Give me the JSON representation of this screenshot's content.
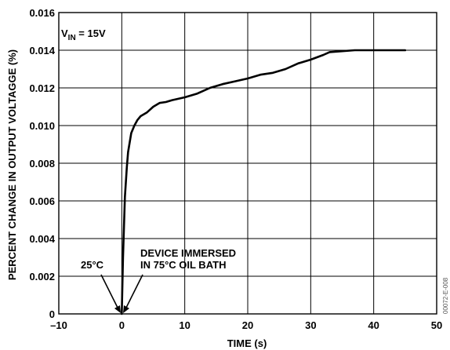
{
  "chart_data": {
    "type": "line",
    "title": "",
    "xlabel": "TIME (s)",
    "ylabel": "PERCENT CHANGE IN OUTPUT VOLTAGGE (%)",
    "xlim": [
      -10,
      50
    ],
    "ylim": [
      0,
      0.016
    ],
    "x_ticks": [
      -10,
      0,
      10,
      20,
      30,
      40,
      50
    ],
    "x_tick_labels": [
      "–10",
      "0",
      "10",
      "20",
      "30",
      "40",
      "50"
    ],
    "y_ticks": [
      0,
      0.002,
      0.004,
      0.006,
      0.008,
      0.01,
      0.012,
      0.014,
      0.016
    ],
    "y_tick_labels": [
      "0",
      "0.002",
      "0.004",
      "0.006",
      "0.008",
      "0.010",
      "0.012",
      "0.014",
      "0.016"
    ],
    "grid": true,
    "annotations": {
      "vin_main": "V",
      "vin_sub": "IN",
      "vin_rest": " = 15V",
      "temp_left": "25°C",
      "immersed_line1": "DEVICE IMMERSED",
      "immersed_line2": "IN 75°C OIL BATH"
    },
    "figure_id": "00072-E-008",
    "series": [
      {
        "x": [
          0,
          0.2,
          0.5,
          0.8,
          1.0,
          1.5,
          2.0,
          2.5,
          3.0,
          4.0,
          5.0,
          6.0,
          7.0,
          8.0,
          10.0,
          12.0,
          14.0,
          16.0,
          18.0,
          20.0,
          22.0,
          24.0,
          26.0,
          28.0,
          30.0,
          32.0,
          33.0,
          35.0,
          37.0,
          40.0,
          42.0,
          45.0
        ],
        "y": [
          0,
          0.003,
          0.0062,
          0.0078,
          0.0086,
          0.0096,
          0.01,
          0.0103,
          0.0105,
          0.0107,
          0.011,
          0.0112,
          0.01125,
          0.01135,
          0.0115,
          0.0117,
          0.012,
          0.0122,
          0.01235,
          0.0125,
          0.0127,
          0.0128,
          0.013,
          0.0133,
          0.0135,
          0.01375,
          0.0139,
          0.01395,
          0.014,
          0.014,
          0.014,
          0.014
        ]
      }
    ]
  }
}
